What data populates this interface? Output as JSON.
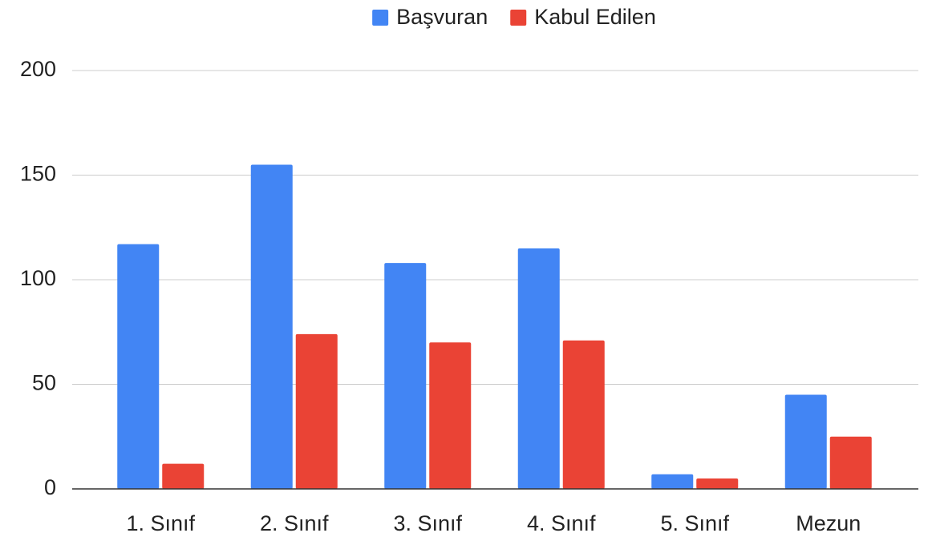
{
  "chart_data": {
    "type": "bar",
    "categories": [
      "1. Sınıf",
      "2. Sınıf",
      "3. Sınıf",
      "4. Sınıf",
      "5. Sınıf",
      "Mezun"
    ],
    "series": [
      {
        "name": "Başvuran",
        "color": "#4285f4",
        "values": [
          117,
          155,
          108,
          115,
          7,
          45
        ]
      },
      {
        "name": "Kabul Edilen",
        "color": "#ea4335",
        "values": [
          12,
          74,
          70,
          71,
          5,
          25
        ]
      }
    ],
    "ylim": [
      0,
      200
    ],
    "yticks": [
      0,
      50,
      100,
      150,
      200
    ],
    "grid": true,
    "legend": "top"
  }
}
